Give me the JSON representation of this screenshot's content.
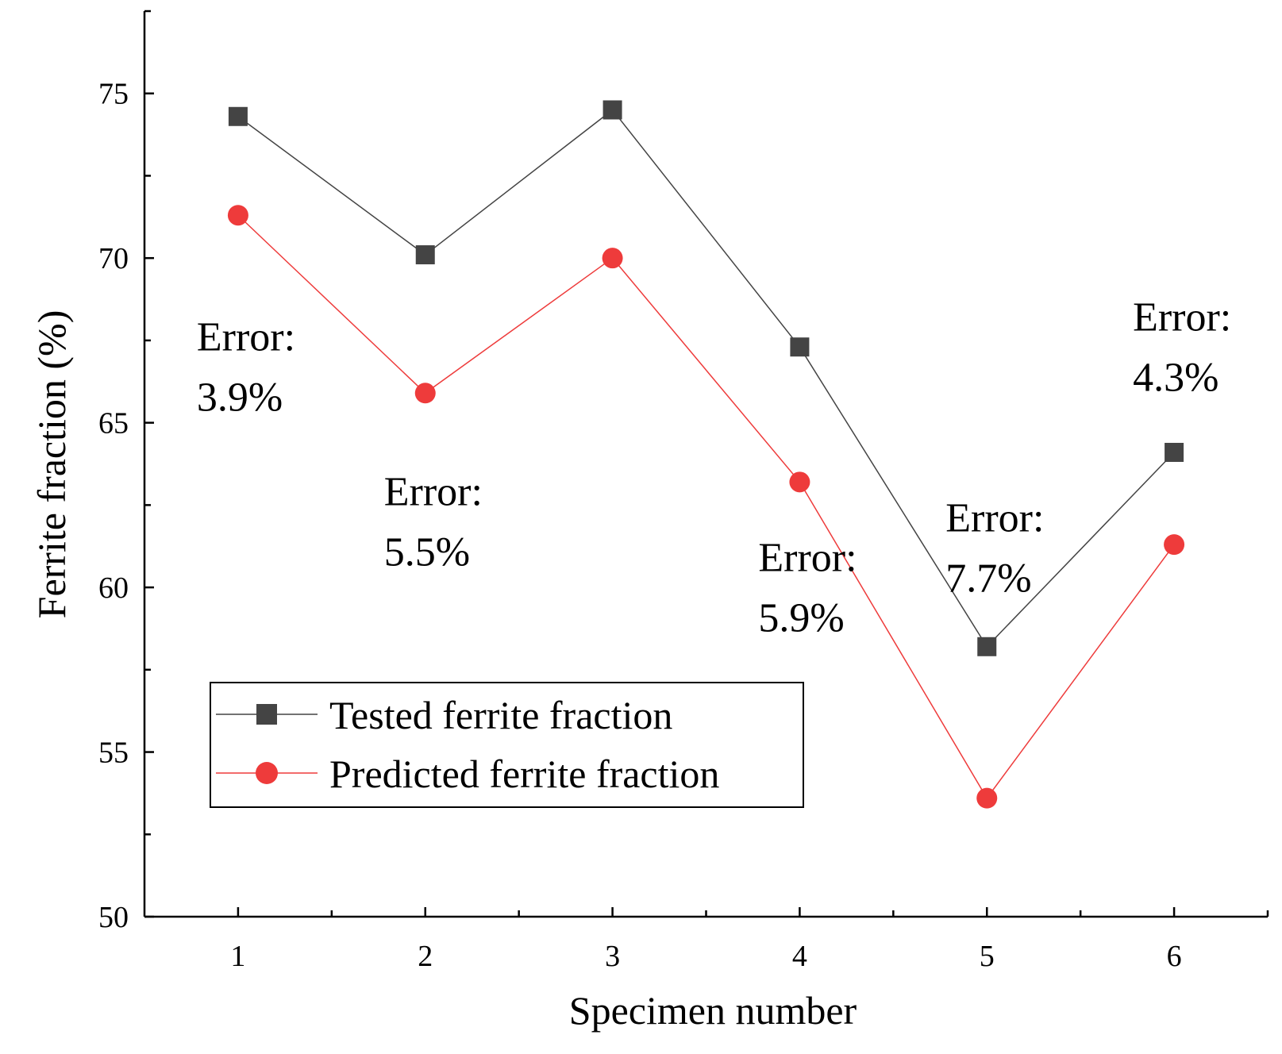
{
  "chart_data": {
    "type": "line",
    "xlabel": "Specimen number",
    "ylabel": "Ferrite fraction (%)",
    "x": [
      1,
      2,
      3,
      4,
      5,
      6
    ],
    "xlim": [
      0.5,
      6.5
    ],
    "ylim": [
      50,
      77.5
    ],
    "yticks": [
      50,
      55,
      60,
      65,
      70,
      75
    ],
    "xticks": [
      1,
      2,
      3,
      4,
      5,
      6
    ],
    "grid": false,
    "legend_position": "lower-left",
    "series": [
      {
        "name": "Tested ferrite fraction",
        "values": [
          74.3,
          70.1,
          74.5,
          67.3,
          58.2,
          64.1
        ],
        "color": "#444444",
        "marker": "square"
      },
      {
        "name": "Predicted ferrite fraction",
        "values": [
          71.3,
          65.9,
          70.0,
          63.2,
          53.6,
          61.3
        ],
        "color": "#ee3b3b",
        "marker": "circle"
      }
    ],
    "annotations": [
      {
        "label": "Error:",
        "value": "3.9%",
        "x": 1,
        "y": 67.2
      },
      {
        "label": "Error:",
        "value": "5.5%",
        "x": 2,
        "y": 62.5
      },
      {
        "label": "Error:",
        "value": "5.9%",
        "x": 4,
        "y": 60.5
      },
      {
        "label": "Error:",
        "value": "7.7%",
        "x": 5,
        "y": 61.7
      },
      {
        "label": "Error:",
        "value": "4.3%",
        "x": 6,
        "y": 67.8
      }
    ]
  }
}
